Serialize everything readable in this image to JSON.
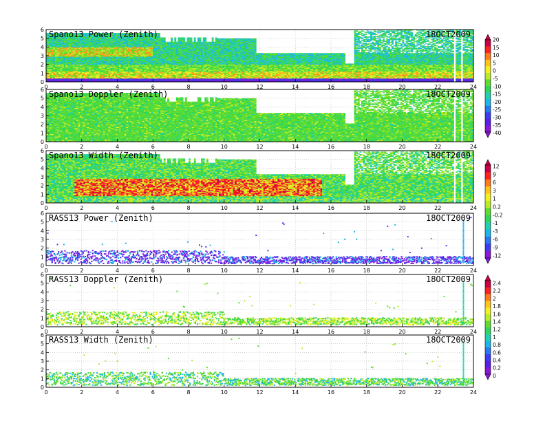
{
  "chart_data": [
    {
      "type": "heatmap",
      "title": "Spano13 Power (Zenith)",
      "date": "18OCT2009",
      "xlim": [
        0,
        24
      ],
      "ylim": [
        0,
        6
      ],
      "x_ticks": [
        "0",
        "2",
        "4",
        "6",
        "8",
        "10",
        "12",
        "14",
        "16",
        "18",
        "20",
        "22",
        "24"
      ],
      "y_ticks": [
        "0",
        "1",
        "2",
        "3",
        "4",
        "5",
        "6"
      ],
      "grid": true,
      "colorbar_group": 0
    },
    {
      "type": "heatmap",
      "title": "Spano13 Doppler (Zenith)",
      "date": "18OCT2009",
      "xlim": [
        0,
        24
      ],
      "ylim": [
        0,
        6
      ],
      "x_ticks": [
        "0",
        "2",
        "4",
        "6",
        "8",
        "10",
        "12",
        "14",
        "16",
        "18",
        "20",
        "22",
        "24"
      ],
      "y_ticks": [
        "0",
        "1",
        "2",
        "3",
        "4",
        "5",
        "6"
      ],
      "grid": true,
      "colorbar_group": 0
    },
    {
      "type": "heatmap",
      "title": "Spano13 Width (Zenith)",
      "date": "18OCT2009",
      "xlim": [
        0,
        24
      ],
      "ylim": [
        0,
        6
      ],
      "x_ticks": [
        "0",
        "2",
        "4",
        "6",
        "8",
        "10",
        "12",
        "14",
        "16",
        "18",
        "20",
        "22",
        "24"
      ],
      "y_ticks": [
        "0",
        "1",
        "2",
        "3",
        "4",
        "5",
        "6"
      ],
      "grid": true,
      "colorbar_group": 1
    },
    {
      "type": "heatmap",
      "title": "RASS13 Power (Zenith)",
      "date": "18OCT2009",
      "xlim": [
        0,
        24
      ],
      "ylim": [
        0,
        6
      ],
      "x_ticks": [
        "0",
        "2",
        "4",
        "6",
        "8",
        "10",
        "12",
        "14",
        "16",
        "18",
        "20",
        "22",
        "24"
      ],
      "y_ticks": [
        "0",
        "1",
        "2",
        "3",
        "4",
        "5",
        "6"
      ],
      "grid": true,
      "colorbar_group": 1
    },
    {
      "type": "heatmap",
      "title": "RASS13 Doppler (Zenith)",
      "date": "18OCT2009",
      "xlim": [
        0,
        24
      ],
      "ylim": [
        0,
        6
      ],
      "x_ticks": [
        "0",
        "2",
        "4",
        "6",
        "8",
        "10",
        "12",
        "14",
        "16",
        "18",
        "20",
        "22",
        "24"
      ],
      "y_ticks": [
        "0",
        "1",
        "2",
        "3",
        "4",
        "5",
        "6"
      ],
      "grid": true,
      "colorbar_group": 2
    },
    {
      "type": "heatmap",
      "title": "RASS13 Width (Zenith)",
      "date": "18OCT2009",
      "xlim": [
        0,
        24
      ],
      "ylim": [
        0,
        6
      ],
      "x_ticks": [
        "0",
        "2",
        "4",
        "6",
        "8",
        "10",
        "12",
        "14",
        "16",
        "18",
        "20",
        "22",
        "24"
      ],
      "y_ticks": [
        "0",
        "1",
        "2",
        "3",
        "4",
        "5",
        "6"
      ],
      "grid": true,
      "colorbar_group": 2
    }
  ],
  "colorbars": [
    {
      "labels": [
        "20",
        "15",
        "10",
        "5",
        "0",
        "-5",
        "-10",
        "-15",
        "-20",
        "-25",
        "-30",
        "-35",
        "-40"
      ],
      "colors": [
        "#cc0044",
        "#ff2020",
        "#ff7a1a",
        "#ffc418",
        "#f4f020",
        "#b8ec2a",
        "#5edc30",
        "#2ed65a",
        "#22d0b0",
        "#1eb6e8",
        "#2878f0",
        "#3c3cf0",
        "#5a1ee6",
        "#8a18d8"
      ]
    },
    {
      "labels": [
        "12",
        "9",
        "6",
        "3",
        "1",
        "0.2",
        "-0.2",
        "-1",
        "-3",
        "-6",
        "-9",
        "-12"
      ],
      "colors": [
        "#cc0044",
        "#ff2020",
        "#ff7a1a",
        "#ffc418",
        "#f4f020",
        "#b8ec2a",
        "#5edc30",
        "#2ed65a",
        "#22d0b0",
        "#1eb6e8",
        "#2878f0",
        "#3c3cf0",
        "#8a18d8"
      ]
    },
    {
      "labels": [
        "2.4",
        "2.2",
        "2",
        "1.8",
        "1.6",
        "1.4",
        "1.2",
        "1",
        "0.8",
        "0.6",
        "0.4",
        "0.2",
        "0"
      ],
      "colors": [
        "#cc0044",
        "#ff2020",
        "#ff7a1a",
        "#ffc418",
        "#f4f020",
        "#b8ec2a",
        "#5edc30",
        "#2ed65a",
        "#22d0b0",
        "#1eb6e8",
        "#2878f0",
        "#3c3cf0",
        "#5a1ee6",
        "#8a18d8"
      ]
    }
  ]
}
